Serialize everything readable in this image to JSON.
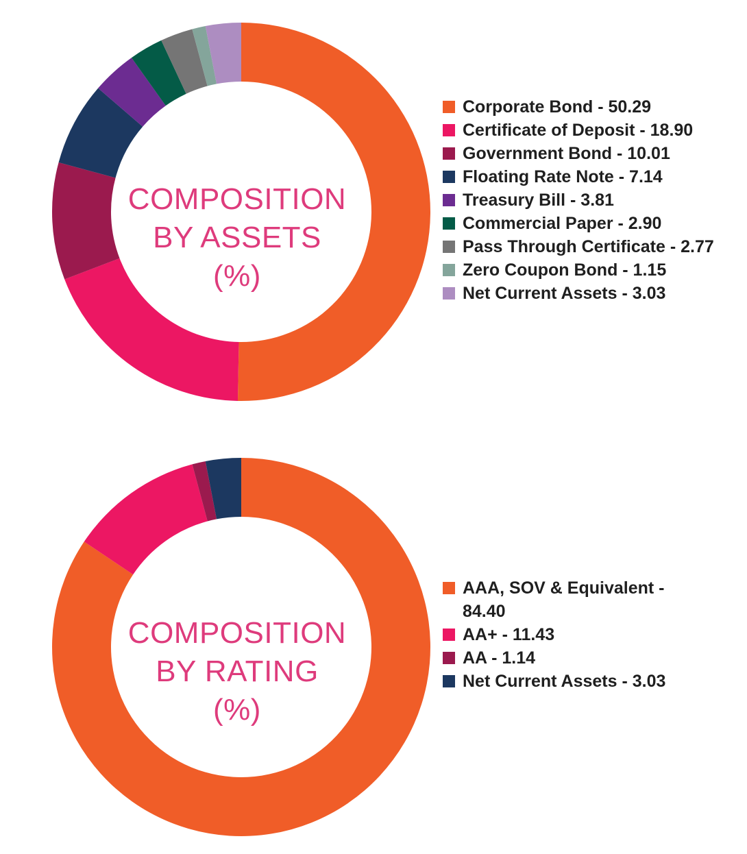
{
  "chart_data": [
    {
      "type": "pie",
      "donut": true,
      "center_label": [
        "COMPOSITION",
        "BY ASSETS",
        "(%)"
      ],
      "legend_position": "right",
      "slices": [
        {
          "label": "Corporate Bond - 50.29",
          "value": 50.29,
          "color": "#f05d28"
        },
        {
          "label": "Certificate of Deposit - 18.90",
          "value": 18.9,
          "color": "#ec1763"
        },
        {
          "label": "Government Bond - 10.01",
          "value": 10.01,
          "color": "#9b1a4e"
        },
        {
          "label": "Floating Rate Note - 7.14",
          "value": 7.14,
          "color": "#1c3860"
        },
        {
          "label": "Treasury Bill - 3.81",
          "value": 3.81,
          "color": "#6c2c91"
        },
        {
          "label": "Commercial Paper - 2.90",
          "value": 2.9,
          "color": "#045b47"
        },
        {
          "label": "Pass Through Certificate - 2.77",
          "value": 2.77,
          "color": "#757575"
        },
        {
          "label": "Zero Coupon Bond - 1.15",
          "value": 1.15,
          "color": "#84a59b"
        },
        {
          "label": "Net Current Assets - 3.03",
          "value": 3.03,
          "color": "#ad8dc1"
        }
      ]
    },
    {
      "type": "pie",
      "donut": true,
      "center_label": [
        "COMPOSITION",
        "BY RATING",
        "(%)"
      ],
      "legend_position": "right",
      "slices": [
        {
          "label": "AAA, SOV & Equivalent - 84.40",
          "value": 84.4,
          "color": "#f05d28"
        },
        {
          "label": "AA+ - 11.43",
          "value": 11.43,
          "color": "#ec1763"
        },
        {
          "label": "AA - 1.14",
          "value": 1.14,
          "color": "#9b1a4e"
        },
        {
          "label": "Net Current Assets - 3.03",
          "value": 3.03,
          "color": "#1c3860"
        }
      ]
    }
  ]
}
